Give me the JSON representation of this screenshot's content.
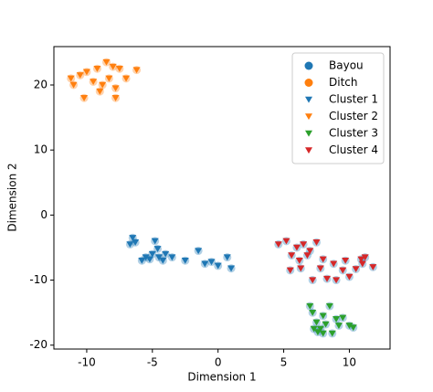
{
  "chart_data": {
    "type": "scatter",
    "x_label": "Dimension 1",
    "y_label": "Dimension 2",
    "xlim": [
      -12.5,
      13.1
    ],
    "ylim": [
      -20.6,
      25.9
    ],
    "xticks": [
      -10,
      -5,
      0,
      5,
      10
    ],
    "yticks": [
      -20,
      -10,
      0,
      10,
      20
    ],
    "legend": "upper right",
    "series": [
      {
        "name": "Bayou",
        "color": "#1f77b4",
        "marker": "circle",
        "x": [
          -6.5,
          -6.7,
          -6.3,
          -5.5,
          -5.2,
          -5,
          -4.8,
          -4.5,
          -4.2,
          -4,
          -3.5,
          -2.5,
          -1.5,
          -1,
          -0.5,
          0,
          0.7,
          1,
          -5.8,
          -4.6,
          7,
          7.2,
          7.5,
          7.8,
          7.3,
          8,
          8.2,
          8.5,
          8.7,
          9,
          9.2,
          9.5,
          10,
          10.3,
          8,
          7.6,
          4.6,
          5.2,
          5.6,
          6,
          6.2,
          6.3,
          6.5,
          6.8,
          7,
          7.2,
          7.5,
          7.8,
          8,
          8.3,
          8.8,
          9,
          9.5,
          9.7,
          10,
          10.5,
          10.9,
          11,
          11.2,
          11.8,
          5.5
        ],
        "y": [
          -3.5,
          -4.5,
          -4.2,
          -6.5,
          -6.8,
          -6,
          -4,
          -6.5,
          -7,
          -6,
          -6.5,
          -7,
          -5.5,
          -7.5,
          -7.2,
          -7.8,
          -6.5,
          -8.2,
          -7,
          -5.2,
          -14,
          -15,
          -16.5,
          -17.5,
          -17.5,
          -15.5,
          -16.8,
          -14,
          -18.2,
          -16,
          -17,
          -15.8,
          -17,
          -17.3,
          -18.2,
          -18,
          -4.5,
          -4,
          -6.2,
          -5,
          -7,
          -8.2,
          -4.5,
          -6.2,
          -5.5,
          -10,
          -4.2,
          -8.2,
          -6.8,
          -9.8,
          -7.5,
          -10,
          -8.5,
          -7,
          -9.5,
          -8.3,
          -6.8,
          -7.5,
          -6.5,
          -8,
          -8.5
        ]
      },
      {
        "name": "Ditch",
        "color": "#ff7f0e",
        "marker": "circle",
        "x": [
          -11,
          -10.5,
          -10.2,
          -10,
          -9.5,
          -9.2,
          -9,
          -8.5,
          -8.3,
          -8,
          -7.8,
          -7.8,
          -7.5,
          -7,
          -6.2,
          -8.8,
          -11.2
        ],
        "y": [
          20,
          21.5,
          18,
          22,
          20.5,
          22.5,
          19,
          23.5,
          21,
          22.8,
          19.5,
          18,
          22.5,
          21,
          22.3,
          20,
          21
        ]
      },
      {
        "name": "Cluster 1",
        "color": "#1f77b4",
        "marker": "triangle",
        "x": [
          -6.5,
          -6.7,
          -6.3,
          -5.5,
          -5.2,
          -5,
          -4.8,
          -4.5,
          -4.2,
          -4,
          -3.5,
          -2.5,
          -1.5,
          -1,
          -0.5,
          0,
          0.7,
          1,
          -5.8,
          -4.6
        ],
        "y": [
          -3.5,
          -4.5,
          -4.2,
          -6.5,
          -6.8,
          -6,
          -4,
          -6.5,
          -7,
          -6,
          -6.5,
          -7,
          -5.5,
          -7.5,
          -7.2,
          -7.8,
          -6.5,
          -8.2,
          -7,
          -5.2
        ]
      },
      {
        "name": "Cluster 2",
        "color": "#ff7f0e",
        "marker": "triangle",
        "x": [
          -11,
          -10.5,
          -10.2,
          -10,
          -9.5,
          -9.2,
          -9,
          -8.5,
          -8.3,
          -8,
          -7.8,
          -7.8,
          -7.5,
          -7,
          -6.2,
          -8.8,
          -11.2
        ],
        "y": [
          20,
          21.5,
          18,
          22,
          20.5,
          22.5,
          19,
          23.5,
          21,
          22.8,
          19.5,
          18,
          22.5,
          21,
          22.3,
          20,
          21
        ]
      },
      {
        "name": "Cluster 3",
        "color": "#2ca02c",
        "marker": "triangle",
        "x": [
          7,
          7.2,
          7.5,
          7.8,
          7.3,
          8,
          8.2,
          8.5,
          8.7,
          9,
          9.2,
          9.5,
          10,
          10.3,
          8,
          7.6
        ],
        "y": [
          -14,
          -15,
          -16.5,
          -17.5,
          -17.5,
          -15.5,
          -16.8,
          -14,
          -18.2,
          -16,
          -17,
          -15.8,
          -17,
          -17.3,
          -18.2,
          -18
        ]
      },
      {
        "name": "Cluster 4",
        "color": "#d62728",
        "marker": "triangle",
        "x": [
          4.6,
          5.2,
          5.6,
          6,
          6.2,
          6.3,
          6.5,
          6.8,
          7,
          7.2,
          7.5,
          7.8,
          8,
          8.3,
          8.8,
          9,
          9.5,
          9.7,
          10,
          10.5,
          10.9,
          11,
          11.2,
          11.8,
          5.5
        ],
        "y": [
          -4.5,
          -4,
          -6.2,
          -5,
          -7,
          -8.2,
          -4.5,
          -6.2,
          -5.5,
          -10,
          -4.2,
          -8.2,
          -6.8,
          -9.8,
          -7.5,
          -10,
          -8.5,
          -7,
          -9.5,
          -8.3,
          -6.8,
          -7.5,
          -6.5,
          -8,
          -8.5
        ]
      }
    ]
  }
}
